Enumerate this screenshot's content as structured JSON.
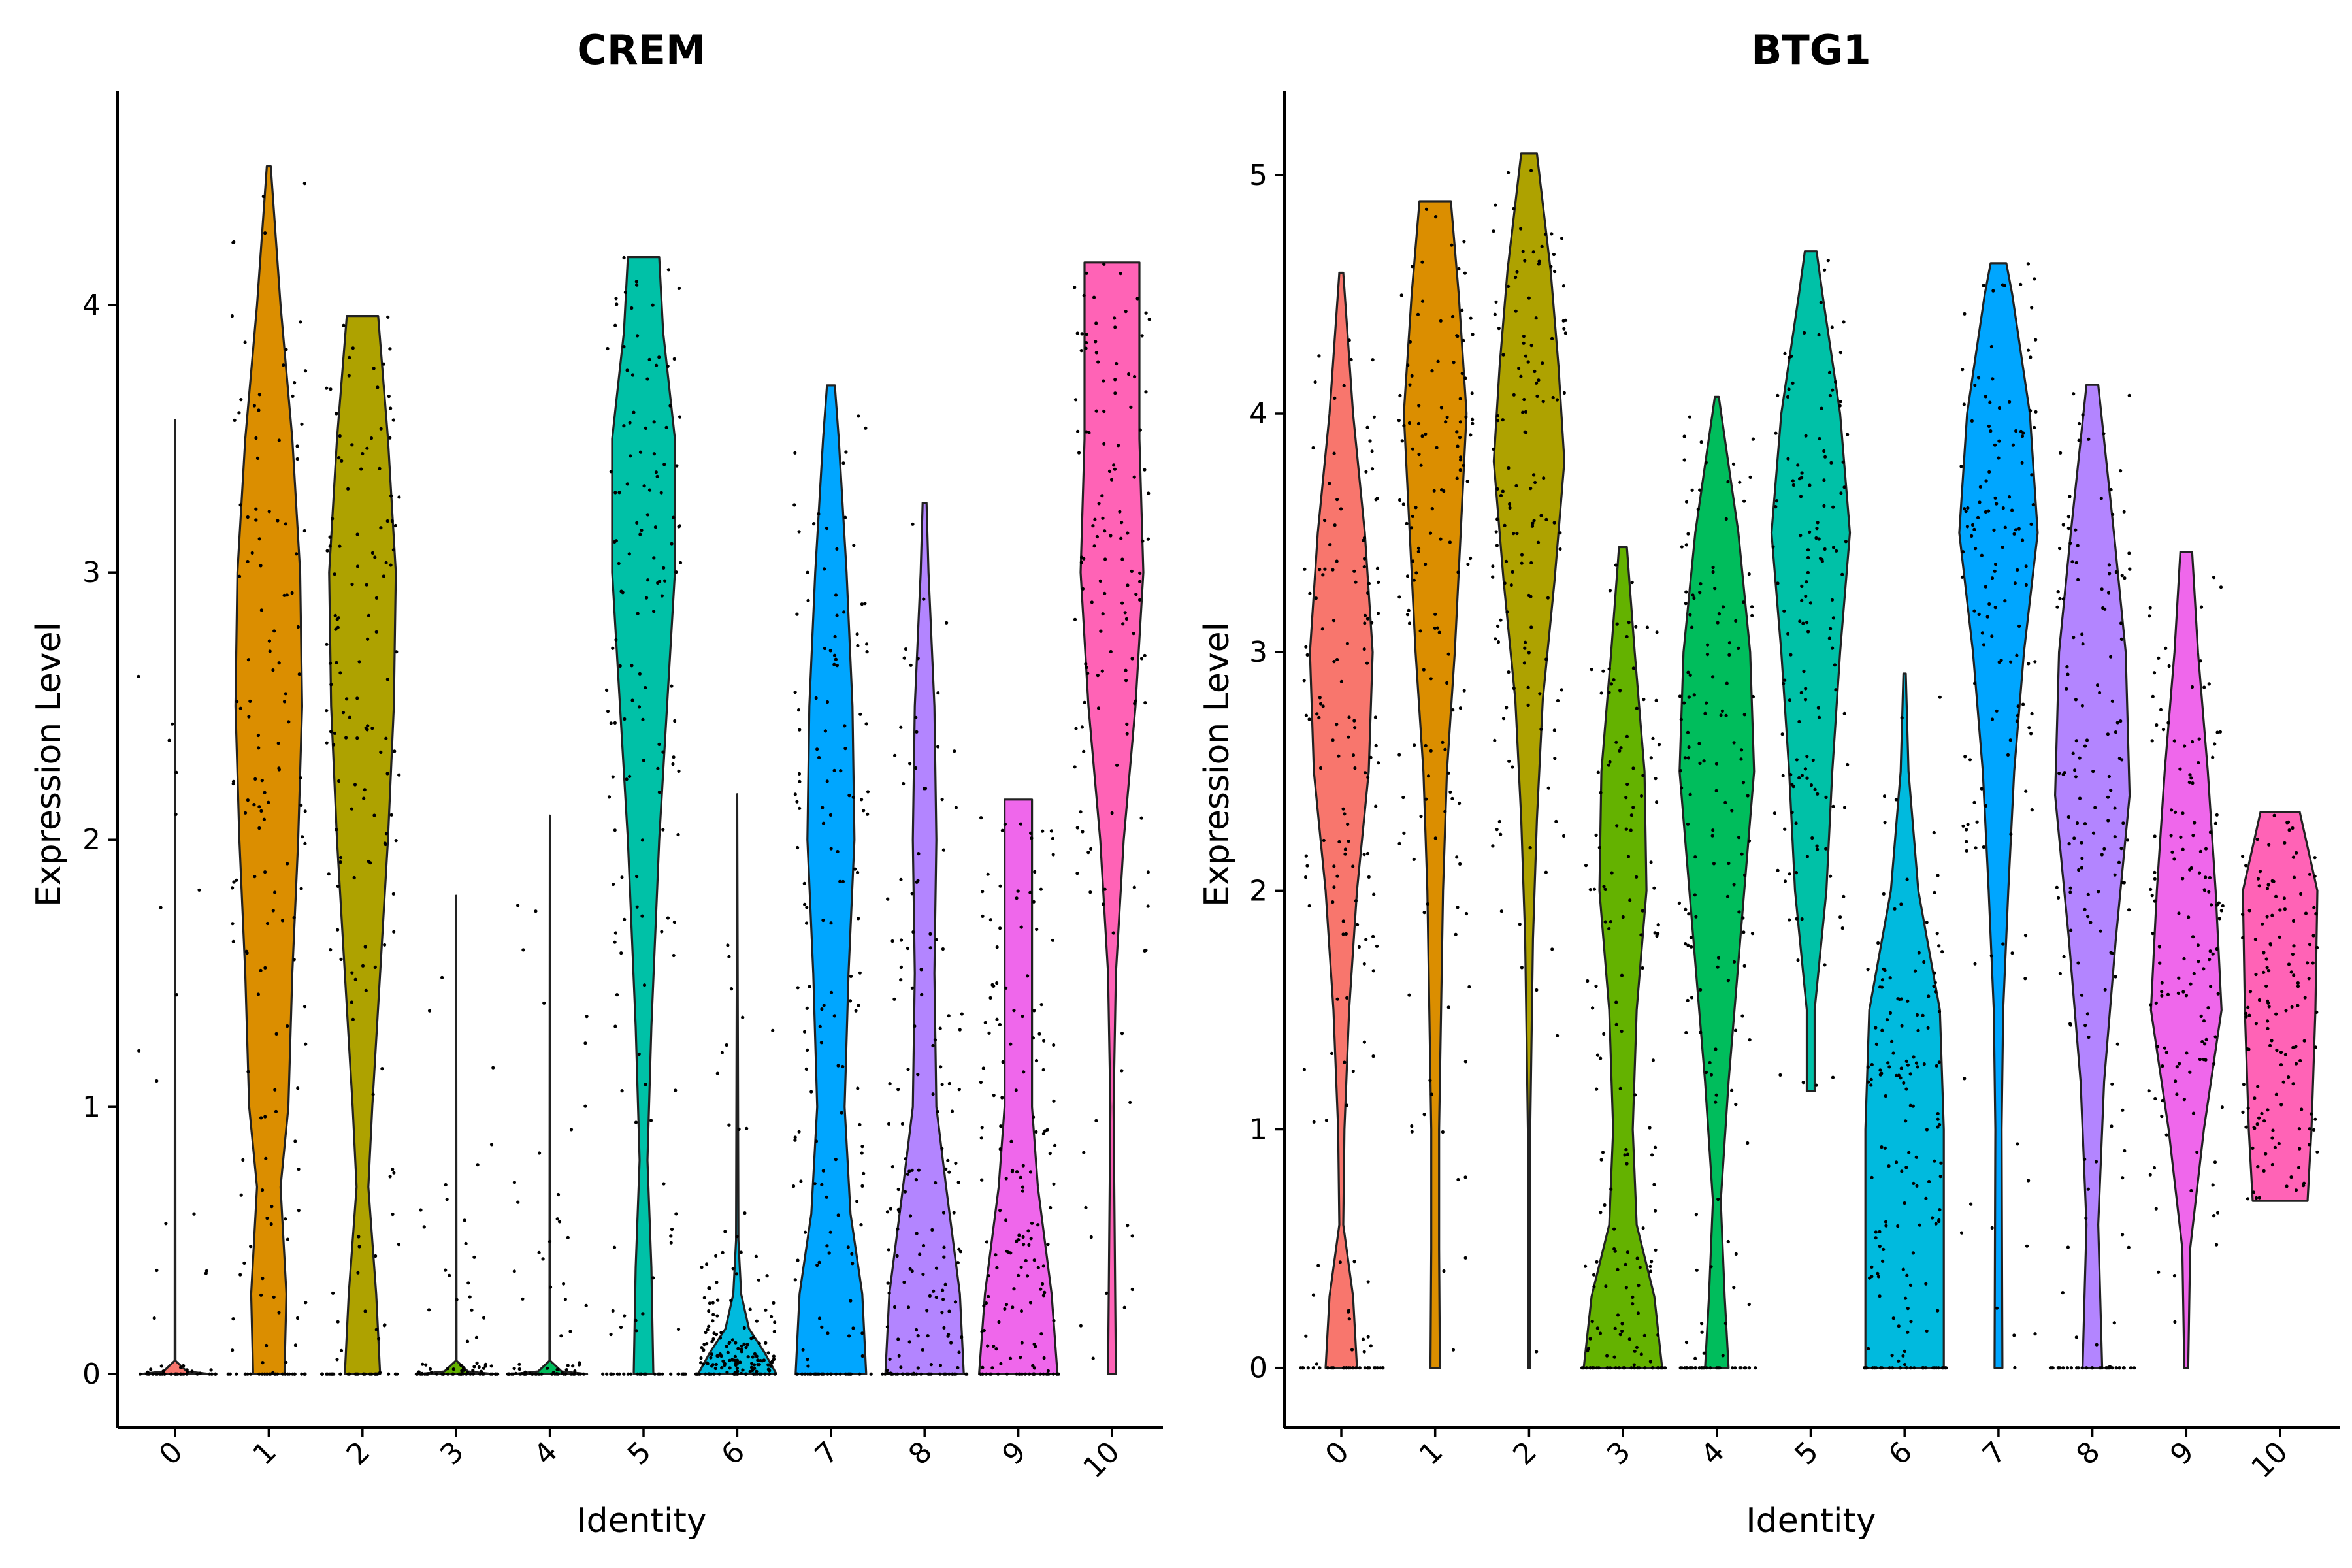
{
  "chart_data": [
    {
      "type": "violin",
      "title": "CREM",
      "xlabel": "Identity",
      "ylabel": "Expression Level",
      "ylim": [
        -0.2,
        4.8
      ],
      "yticks": [
        0,
        1,
        2,
        3,
        4
      ],
      "categories": [
        "0",
        "1",
        "2",
        "3",
        "4",
        "5",
        "6",
        "7",
        "8",
        "9",
        "10"
      ],
      "series": [
        {
          "identity": "0",
          "color": "#F8766D",
          "max": 3.57,
          "shape": [
            [
              0.0,
              0.9
            ],
            [
              0.01,
              0.3
            ],
            [
              0.05,
              0.01
            ],
            [
              3.57,
              0.0
            ]
          ]
        },
        {
          "identity": "1",
          "color": "#DB8E00",
          "max": 4.52,
          "shape": [
            [
              0.0,
              0.4
            ],
            [
              0.3,
              0.45
            ],
            [
              0.7,
              0.3
            ],
            [
              1.0,
              0.5
            ],
            [
              1.5,
              0.6
            ],
            [
              2.0,
              0.75
            ],
            [
              2.5,
              0.85
            ],
            [
              3.0,
              0.8
            ],
            [
              3.5,
              0.6
            ],
            [
              4.0,
              0.3
            ],
            [
              4.52,
              0.05
            ]
          ]
        },
        {
          "identity": "2",
          "color": "#AEA200",
          "max": 3.96,
          "shape": [
            [
              0.0,
              0.45
            ],
            [
              0.3,
              0.35
            ],
            [
              0.7,
              0.15
            ],
            [
              1.0,
              0.25
            ],
            [
              1.5,
              0.45
            ],
            [
              2.0,
              0.65
            ],
            [
              2.5,
              0.8
            ],
            [
              3.0,
              0.85
            ],
            [
              3.5,
              0.65
            ],
            [
              3.96,
              0.4
            ]
          ]
        },
        {
          "identity": "3",
          "color": "#64B200",
          "max": 1.79,
          "shape": [
            [
              0.0,
              0.95
            ],
            [
              0.01,
              0.3
            ],
            [
              0.05,
              0.01
            ],
            [
              1.79,
              0.0
            ]
          ]
        },
        {
          "identity": "4",
          "color": "#00BD5C",
          "max": 2.09,
          "shape": [
            [
              0.0,
              0.95
            ],
            [
              0.01,
              0.3
            ],
            [
              0.05,
              0.01
            ],
            [
              2.09,
              0.0
            ]
          ]
        },
        {
          "identity": "5",
          "color": "#00C1A7",
          "max": 4.18,
          "shape": [
            [
              0.0,
              0.25
            ],
            [
              0.4,
              0.2
            ],
            [
              0.8,
              0.1
            ],
            [
              1.3,
              0.2
            ],
            [
              2.0,
              0.4
            ],
            [
              2.5,
              0.6
            ],
            [
              3.0,
              0.8
            ],
            [
              3.5,
              0.8
            ],
            [
              3.9,
              0.5
            ],
            [
              4.18,
              0.4
            ]
          ]
        },
        {
          "identity": "6",
          "color": "#00BADE",
          "max": 2.17,
          "shape": [
            [
              0.0,
              1.0
            ],
            [
              0.08,
              0.7
            ],
            [
              0.17,
              0.3
            ],
            [
              0.3,
              0.1
            ],
            [
              0.5,
              0.03
            ],
            [
              2.17,
              0.0
            ]
          ]
        },
        {
          "identity": "7",
          "color": "#00A6FF",
          "max": 3.7,
          "shape": [
            [
              0.0,
              0.9
            ],
            [
              0.3,
              0.8
            ],
            [
              0.6,
              0.5
            ],
            [
              1.0,
              0.35
            ],
            [
              1.5,
              0.45
            ],
            [
              2.0,
              0.6
            ],
            [
              2.5,
              0.55
            ],
            [
              3.0,
              0.4
            ],
            [
              3.5,
              0.2
            ],
            [
              3.7,
              0.1
            ]
          ]
        },
        {
          "identity": "8",
          "color": "#B385FF",
          "max": 3.26,
          "shape": [
            [
              0.0,
              1.0
            ],
            [
              0.3,
              0.9
            ],
            [
              0.7,
              0.55
            ],
            [
              1.0,
              0.3
            ],
            [
              1.5,
              0.25
            ],
            [
              2.0,
              0.3
            ],
            [
              2.5,
              0.25
            ],
            [
              3.0,
              0.1
            ],
            [
              3.26,
              0.05
            ]
          ]
        },
        {
          "identity": "9",
          "color": "#EF67EB",
          "max": 2.15,
          "shape": [
            [
              0.0,
              1.0
            ],
            [
              0.3,
              0.85
            ],
            [
              0.7,
              0.5
            ],
            [
              1.0,
              0.35
            ],
            [
              1.5,
              0.35
            ],
            [
              2.0,
              0.35
            ],
            [
              2.15,
              0.35
            ]
          ]
        },
        {
          "identity": "10",
          "color": "#FF63B6",
          "max": 4.16,
          "shape": [
            [
              0.0,
              0.1
            ],
            [
              1.0,
              0.04
            ],
            [
              1.5,
              0.1
            ],
            [
              2.0,
              0.3
            ],
            [
              2.5,
              0.6
            ],
            [
              3.0,
              0.8
            ],
            [
              3.5,
              0.7
            ],
            [
              4.0,
              0.7
            ],
            [
              4.16,
              0.7
            ]
          ]
        }
      ]
    },
    {
      "type": "violin",
      "title": "BTG1",
      "xlabel": "Identity",
      "ylabel": "Expression Level",
      "ylim": [
        -0.25,
        5.35
      ],
      "yticks": [
        0,
        1,
        2,
        3,
        4,
        5
      ],
      "categories": [
        "0",
        "1",
        "2",
        "3",
        "4",
        "5",
        "6",
        "7",
        "8",
        "9",
        "10"
      ],
      "series": [
        {
          "identity": "0",
          "color": "#F8766D",
          "min": 0.0,
          "max": 4.59,
          "shape": [
            [
              0.0,
              0.4
            ],
            [
              0.3,
              0.3
            ],
            [
              0.6,
              0.05
            ],
            [
              1.0,
              0.08
            ],
            [
              1.5,
              0.2
            ],
            [
              2.0,
              0.4
            ],
            [
              2.5,
              0.7
            ],
            [
              3.0,
              0.8
            ],
            [
              3.5,
              0.6
            ],
            [
              4.0,
              0.3
            ],
            [
              4.59,
              0.05
            ]
          ]
        },
        {
          "identity": "1",
          "color": "#DB8E00",
          "min": 0.0,
          "max": 4.89,
          "shape": [
            [
              0.0,
              0.12
            ],
            [
              0.5,
              0.1
            ],
            [
              1.0,
              0.1
            ],
            [
              1.5,
              0.15
            ],
            [
              2.0,
              0.2
            ],
            [
              2.5,
              0.3
            ],
            [
              3.0,
              0.5
            ],
            [
              3.5,
              0.65
            ],
            [
              4.0,
              0.8
            ],
            [
              4.5,
              0.6
            ],
            [
              4.89,
              0.4
            ]
          ]
        },
        {
          "identity": "2",
          "color": "#AEA200",
          "min": 0.0,
          "max": 5.09,
          "shape": [
            [
              0.0,
              0.03
            ],
            [
              1.0,
              0.03
            ],
            [
              1.8,
              0.1
            ],
            [
              2.3,
              0.2
            ],
            [
              2.8,
              0.35
            ],
            [
              3.3,
              0.65
            ],
            [
              3.8,
              0.9
            ],
            [
              4.2,
              0.75
            ],
            [
              4.6,
              0.55
            ],
            [
              5.09,
              0.2
            ]
          ]
        },
        {
          "identity": "3",
          "color": "#64B200",
          "min": 0.0,
          "max": 3.44,
          "shape": [
            [
              0.0,
              1.0
            ],
            [
              0.3,
              0.8
            ],
            [
              0.6,
              0.35
            ],
            [
              1.0,
              0.25
            ],
            [
              1.5,
              0.35
            ],
            [
              2.0,
              0.6
            ],
            [
              2.5,
              0.55
            ],
            [
              3.0,
              0.3
            ],
            [
              3.44,
              0.1
            ]
          ]
        },
        {
          "identity": "4",
          "color": "#00BD5C",
          "min": 0.0,
          "max": 4.07,
          "shape": [
            [
              0.0,
              0.3
            ],
            [
              0.3,
              0.2
            ],
            [
              0.7,
              0.1
            ],
            [
              1.2,
              0.3
            ],
            [
              1.8,
              0.6
            ],
            [
              2.5,
              0.95
            ],
            [
              3.0,
              0.85
            ],
            [
              3.5,
              0.55
            ],
            [
              4.07,
              0.05
            ]
          ]
        },
        {
          "identity": "5",
          "color": "#00C1A7",
          "min": 1.16,
          "max": 4.68,
          "shape": [
            [
              1.16,
              0.1
            ],
            [
              1.5,
              0.1
            ],
            [
              2.0,
              0.4
            ],
            [
              2.5,
              0.55
            ],
            [
              3.0,
              0.75
            ],
            [
              3.5,
              1.0
            ],
            [
              4.0,
              0.75
            ],
            [
              4.5,
              0.3
            ],
            [
              4.68,
              0.15
            ]
          ]
        },
        {
          "identity": "6",
          "color": "#00BADE",
          "min": 0.0,
          "max": 2.91,
          "shape": [
            [
              0.0,
              1.0
            ],
            [
              0.5,
              1.0
            ],
            [
              1.0,
              1.0
            ],
            [
              1.5,
              0.9
            ],
            [
              2.0,
              0.35
            ],
            [
              2.5,
              0.1
            ],
            [
              2.91,
              0.03
            ]
          ]
        },
        {
          "identity": "7",
          "color": "#00A6FF",
          "min": 0.0,
          "max": 4.63,
          "shape": [
            [
              0.0,
              0.1
            ],
            [
              1.0,
              0.08
            ],
            [
              1.5,
              0.12
            ],
            [
              2.0,
              0.25
            ],
            [
              2.5,
              0.4
            ],
            [
              3.0,
              0.65
            ],
            [
              3.5,
              1.0
            ],
            [
              4.0,
              0.8
            ],
            [
              4.5,
              0.35
            ],
            [
              4.63,
              0.2
            ]
          ]
        },
        {
          "identity": "8",
          "color": "#B385FF",
          "min": 0.0,
          "max": 4.12,
          "shape": [
            [
              0.0,
              0.25
            ],
            [
              0.6,
              0.15
            ],
            [
              1.2,
              0.3
            ],
            [
              1.8,
              0.6
            ],
            [
              2.4,
              0.95
            ],
            [
              3.0,
              0.85
            ],
            [
              3.5,
              0.55
            ],
            [
              4.12,
              0.15
            ]
          ]
        },
        {
          "identity": "9",
          "color": "#EF67EB",
          "min": 0.0,
          "max": 3.42,
          "shape": [
            [
              0.0,
              0.05
            ],
            [
              0.5,
              0.1
            ],
            [
              1.0,
              0.45
            ],
            [
              1.5,
              0.9
            ],
            [
              2.0,
              0.75
            ],
            [
              2.5,
              0.55
            ],
            [
              3.0,
              0.3
            ],
            [
              3.42,
              0.15
            ]
          ]
        },
        {
          "identity": "10",
          "color": "#FF63B6",
          "min": 0.7,
          "max": 2.33,
          "shape": [
            [
              0.7,
              0.7
            ],
            [
              1.0,
              0.8
            ],
            [
              1.5,
              0.9
            ],
            [
              2.0,
              0.95
            ],
            [
              2.33,
              0.5
            ]
          ]
        }
      ]
    }
  ]
}
